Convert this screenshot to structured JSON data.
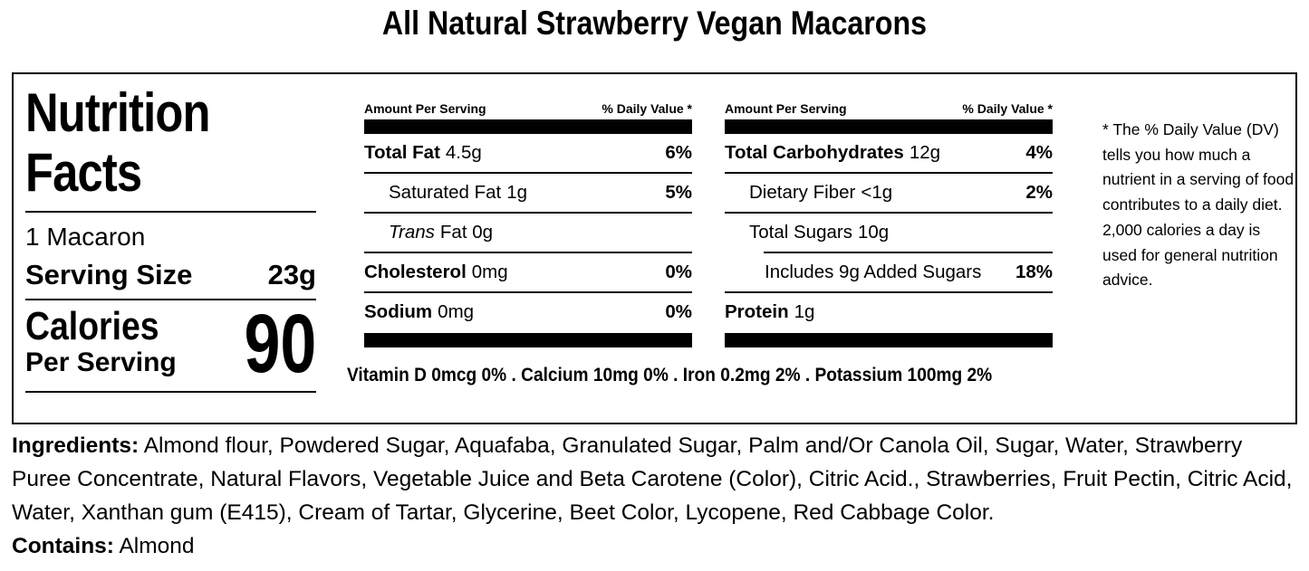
{
  "title": "All Natural Strawberry Vegan Macarons",
  "label": {
    "heading": "Nutrition Facts",
    "serving_descriptor": "1 Macaron",
    "serving_size_label": "Serving Size",
    "serving_size_value": "23g",
    "calories_label": "Calories",
    "calories_sublabel": "Per Serving",
    "calories_value": "90",
    "fat_column": {
      "amount_header": "Amount Per Serving",
      "dv_header": "% Daily Value *",
      "rows": [
        {
          "name": "Total Fat",
          "amount": "4.5g",
          "dv": "6%"
        },
        {
          "name": "Saturated Fat",
          "amount": "1g",
          "dv": "5%"
        },
        {
          "name": "Trans",
          "amount": "Fat 0g",
          "dv": ""
        },
        {
          "name": "Cholesterol",
          "amount": "0mg",
          "dv": "0%"
        },
        {
          "name": "Sodium",
          "amount": "0mg",
          "dv": "0%"
        }
      ]
    },
    "carb_column": {
      "amount_header": "Amount Per Serving",
      "dv_header": "% Daily Value *",
      "rows": [
        {
          "name": "Total Carbohydrates",
          "amount": "12g",
          "dv": "4%"
        },
        {
          "name": "Dietary Fiber",
          "amount": "<1g",
          "dv": "2%"
        },
        {
          "name": "Total Sugars",
          "amount": "10g",
          "dv": ""
        },
        {
          "name": "Includes 9g Added Sugars",
          "amount": "",
          "dv": "18%"
        },
        {
          "name": "Protein",
          "amount": "1g",
          "dv": ""
        }
      ]
    },
    "micronutrients": "Vitamin D 0mcg 0% . Calcium 10mg 0% . Iron 0.2mg 2% . Potassium 100mg 2%",
    "footnote": "* The % Daily Value (DV) tells you how much a nutrient in a serving of food contributes to a daily diet. 2,000 calories a day is used for general nutrition advice."
  },
  "ingredients": {
    "label": "Ingredients:",
    "text": "Almond flour, Powdered Sugar, Aquafaba, Granulated Sugar, Palm and/Or Canola Oil, Sugar, Water, Strawberry Puree Concentrate, Natural Flavors, Vegetable Juice and Beta Carotene (Color), Citric Acid., Strawberries, Fruit Pectin, Citric Acid, Water, Xanthan gum (E415), Cream of Tartar, Glycerine, Beet Color, Lycopene, Red Cabbage Color."
  },
  "contains": {
    "label": "Contains:",
    "text": "Almond"
  },
  "colors": {
    "text": "#000000",
    "background": "#ffffff"
  }
}
